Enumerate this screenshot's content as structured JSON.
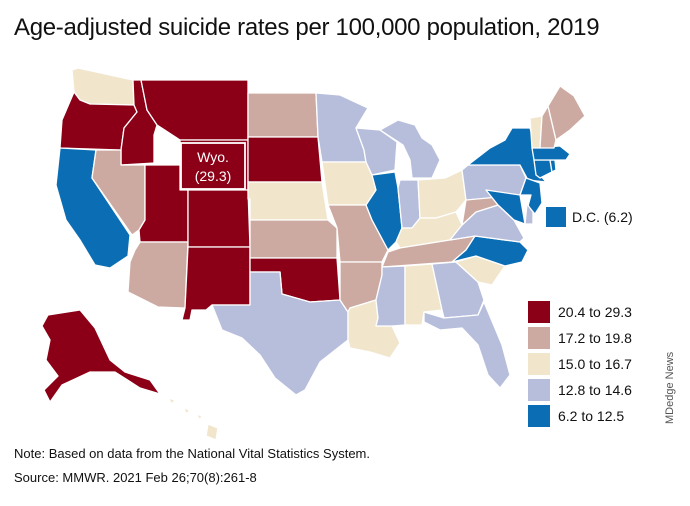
{
  "title": "Age-adjusted suicide rates per 100,000 population, 2019",
  "callout": {
    "label": "Wyo.",
    "value": "(29.3)"
  },
  "dc_label": "D.C. (6.2)",
  "legend": [
    {
      "label": "20.4 to 29.3",
      "color": "#8b0016"
    },
    {
      "label": "17.2 to 19.8",
      "color": "#ccaaa1"
    },
    {
      "label": "15.0 to 16.7",
      "color": "#f1e6cc"
    },
    {
      "label": "12.8 to 14.6",
      "color": "#b7bedc"
    },
    {
      "label": "6.2 to 12.5",
      "color": "#0b6eb4"
    }
  ],
  "colors": {
    "c1": "#8b0016",
    "c2": "#ccaaa1",
    "c3": "#f1e6cc",
    "c4": "#b7bedc",
    "c5": "#0b6eb4",
    "border": "#ffffff"
  },
  "states": [
    {
      "name": "Washington",
      "cat": "c3"
    },
    {
      "name": "Oregon",
      "cat": "c1"
    },
    {
      "name": "California",
      "cat": "c5"
    },
    {
      "name": "Idaho",
      "cat": "c1"
    },
    {
      "name": "Nevada",
      "cat": "c2"
    },
    {
      "name": "Montana",
      "cat": "c1"
    },
    {
      "name": "Wyoming",
      "cat": "c1"
    },
    {
      "name": "Utah",
      "cat": "c1"
    },
    {
      "name": "Arizona",
      "cat": "c2"
    },
    {
      "name": "Colorado",
      "cat": "c1"
    },
    {
      "name": "New Mexico",
      "cat": "c1"
    },
    {
      "name": "North Dakota",
      "cat": "c2"
    },
    {
      "name": "South Dakota",
      "cat": "c1"
    },
    {
      "name": "Nebraska",
      "cat": "c3"
    },
    {
      "name": "Kansas",
      "cat": "c2"
    },
    {
      "name": "Oklahoma",
      "cat": "c1"
    },
    {
      "name": "Texas",
      "cat": "c4"
    },
    {
      "name": "Minnesota",
      "cat": "c4"
    },
    {
      "name": "Iowa",
      "cat": "c3"
    },
    {
      "name": "Missouri",
      "cat": "c2"
    },
    {
      "name": "Arkansas",
      "cat": "c2"
    },
    {
      "name": "Louisiana",
      "cat": "c3"
    },
    {
      "name": "Wisconsin",
      "cat": "c4"
    },
    {
      "name": "Illinois",
      "cat": "c5"
    },
    {
      "name": "Michigan",
      "cat": "c4"
    },
    {
      "name": "Indiana",
      "cat": "c4"
    },
    {
      "name": "Ohio",
      "cat": "c3"
    },
    {
      "name": "Kentucky",
      "cat": "c3"
    },
    {
      "name": "Tennessee",
      "cat": "c2"
    },
    {
      "name": "Mississippi",
      "cat": "c4"
    },
    {
      "name": "Alabama",
      "cat": "c3"
    },
    {
      "name": "Georgia",
      "cat": "c4"
    },
    {
      "name": "Florida",
      "cat": "c4"
    },
    {
      "name": "South Carolina",
      "cat": "c3"
    },
    {
      "name": "North Carolina",
      "cat": "c5"
    },
    {
      "name": "Virginia",
      "cat": "c4"
    },
    {
      "name": "West Virginia",
      "cat": "c2"
    },
    {
      "name": "Pennsylvania",
      "cat": "c4"
    },
    {
      "name": "New York",
      "cat": "c5"
    },
    {
      "name": "New Jersey",
      "cat": "c5"
    },
    {
      "name": "Delaware",
      "cat": "c4"
    },
    {
      "name": "Maryland",
      "cat": "c5"
    },
    {
      "name": "Connecticut",
      "cat": "c5"
    },
    {
      "name": "Rhode Island",
      "cat": "c5"
    },
    {
      "name": "Massachusetts",
      "cat": "c5"
    },
    {
      "name": "Vermont",
      "cat": "c3"
    },
    {
      "name": "New Hampshire",
      "cat": "c2"
    },
    {
      "name": "Maine",
      "cat": "c2"
    },
    {
      "name": "Alaska",
      "cat": "c1"
    },
    {
      "name": "Hawaii",
      "cat": "c3"
    }
  ],
  "note": {
    "prefix": "Note:",
    "text": " Based on data from the National Vital Statistics System."
  },
  "source": {
    "prefix": "Source:",
    "text": " MMWR. 2021 Feb 26;70(8):261-8"
  },
  "watermark": "MDedge News"
}
